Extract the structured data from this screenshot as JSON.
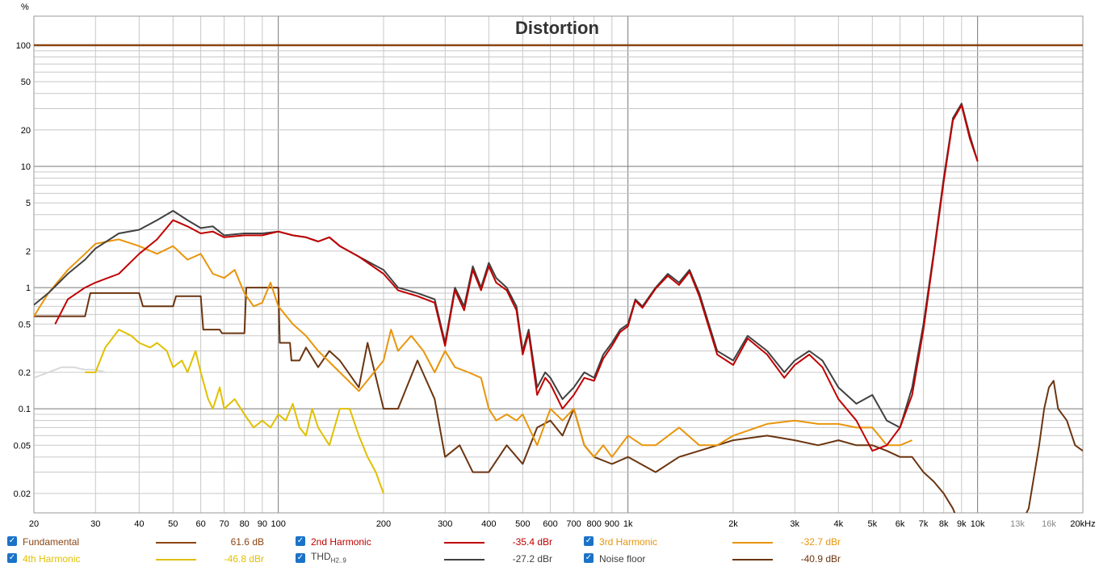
{
  "chart_data": {
    "type": "line",
    "title": "Distortion",
    "ylabel": "%",
    "x_scale": "log",
    "y_scale": "log",
    "xlim": [
      20,
      20000
    ],
    "ylim": [
      0.015,
      100
    ],
    "grid": true,
    "legend_position": "bottom",
    "x_tick_labels": [
      "20",
      "30",
      "40",
      "50",
      "60",
      "70",
      "80",
      "90",
      "100",
      "200",
      "300",
      "400",
      "500",
      "600",
      "700",
      "800",
      "900",
      "1k",
      "2k",
      "3k",
      "4k",
      "5k",
      "6k",
      "7k",
      "8k",
      "9k",
      "10k",
      "13k",
      "16k",
      "20kHz"
    ],
    "x_tick_values": [
      20,
      30,
      40,
      50,
      60,
      70,
      80,
      90,
      100,
      200,
      300,
      400,
      500,
      600,
      700,
      800,
      900,
      1000,
      2000,
      3000,
      4000,
      5000,
      6000,
      7000,
      8000,
      9000,
      10000,
      13000,
      16000,
      20000
    ],
    "y_tick_labels": [
      "100",
      "50",
      "20",
      "10",
      "5",
      "2",
      "1",
      "0.5",
      "0.2",
      "0.1",
      "0.05",
      "0.02"
    ],
    "y_tick_values": [
      100,
      50,
      20,
      10,
      5,
      2,
      1,
      0.5,
      0.2,
      0.1,
      0.05,
      0.02
    ],
    "series": [
      {
        "name": "Fundamental",
        "color": "#8b4513",
        "value": "61.6 dB",
        "x": [
          20,
          20000
        ],
        "y": [
          100,
          100
        ]
      },
      {
        "name": "THD",
        "sub": "H2..9",
        "color": "#404040",
        "value": "-27.2 dBr",
        "x": [
          20,
          22,
          25,
          28,
          30,
          35,
          40,
          45,
          50,
          55,
          60,
          65,
          70,
          80,
          90,
          100,
          110,
          120,
          130,
          140,
          150,
          170,
          200,
          220,
          250,
          280,
          300,
          320,
          340,
          360,
          380,
          400,
          420,
          450,
          480,
          500,
          520,
          550,
          580,
          600,
          650,
          700,
          750,
          800,
          850,
          900,
          950,
          1000,
          1050,
          1100,
          1200,
          1300,
          1400,
          1500,
          1600,
          1800,
          2000,
          2200,
          2500,
          2800,
          3000,
          3300,
          3600,
          4000,
          4500,
          5000,
          5500,
          6000,
          6500,
          7000,
          7500,
          8000,
          8500,
          9000,
          9500,
          10000
        ],
        "y": [
          0.72,
          0.9,
          1.3,
          1.7,
          2.1,
          2.8,
          3.0,
          3.6,
          4.3,
          3.6,
          3.1,
          3.2,
          2.7,
          2.8,
          2.8,
          2.9,
          2.7,
          2.6,
          2.4,
          2.6,
          2.2,
          1.8,
          1.4,
          1.0,
          0.9,
          0.8,
          0.35,
          1.0,
          0.7,
          1.5,
          1.0,
          1.6,
          1.2,
          1.0,
          0.7,
          0.3,
          0.45,
          0.15,
          0.2,
          0.18,
          0.12,
          0.15,
          0.2,
          0.18,
          0.28,
          0.35,
          0.45,
          0.5,
          0.8,
          0.7,
          1.0,
          1.3,
          1.1,
          1.4,
          0.9,
          0.3,
          0.25,
          0.4,
          0.3,
          0.2,
          0.25,
          0.3,
          0.25,
          0.15,
          0.11,
          0.13,
          0.08,
          0.07,
          0.15,
          0.5,
          2,
          8,
          25,
          33,
          18,
          11
        ]
      },
      {
        "name": "2nd Harmonic",
        "color": "#c00000",
        "value": "-35.4 dBr",
        "x": [
          23,
          25,
          28,
          30,
          35,
          40,
          45,
          50,
          55,
          60,
          65,
          70,
          80,
          90,
          100,
          110,
          120,
          130,
          140,
          150,
          170,
          200,
          220,
          250,
          280,
          300,
          320,
          340,
          360,
          380,
          400,
          420,
          450,
          480,
          500,
          520,
          550,
          580,
          600,
          650,
          700,
          750,
          800,
          850,
          900,
          950,
          1000,
          1050,
          1100,
          1200,
          1300,
          1400,
          1500,
          1600,
          1800,
          2000,
          2200,
          2500,
          2800,
          3000,
          3300,
          3600,
          4000,
          4500,
          5000,
          5500,
          6000,
          6500,
          7000,
          7500,
          8000,
          8500,
          9000,
          9500,
          10000
        ],
        "y": [
          0.5,
          0.8,
          1.0,
          1.1,
          1.3,
          1.9,
          2.5,
          3.6,
          3.2,
          2.8,
          2.9,
          2.6,
          2.7,
          2.7,
          2.9,
          2.7,
          2.6,
          2.4,
          2.6,
          2.2,
          1.8,
          1.3,
          0.95,
          0.85,
          0.75,
          0.33,
          0.95,
          0.65,
          1.4,
          0.95,
          1.5,
          1.1,
          0.95,
          0.65,
          0.28,
          0.42,
          0.13,
          0.18,
          0.16,
          0.1,
          0.13,
          0.18,
          0.17,
          0.26,
          0.33,
          0.43,
          0.48,
          0.78,
          0.68,
          0.98,
          1.25,
          1.05,
          1.35,
          0.85,
          0.28,
          0.23,
          0.38,
          0.28,
          0.18,
          0.23,
          0.28,
          0.22,
          0.12,
          0.08,
          0.045,
          0.05,
          0.07,
          0.13,
          0.45,
          1.9,
          7.5,
          24,
          32,
          17,
          11
        ]
      },
      {
        "name": "3rd Harmonic",
        "color": "#e8950c",
        "value": "-32.7 dBr",
        "x": [
          20,
          22,
          25,
          28,
          30,
          35,
          40,
          45,
          50,
          55,
          60,
          65,
          70,
          75,
          80,
          85,
          90,
          95,
          100,
          110,
          120,
          130,
          150,
          170,
          200,
          210,
          220,
          240,
          260,
          280,
          300,
          320,
          350,
          380,
          400,
          420,
          450,
          480,
          500,
          550,
          600,
          650,
          700,
          750,
          800,
          850,
          900,
          1000,
          1100,
          1200,
          1400,
          1600,
          1800,
          2000,
          2500,
          3000,
          3500,
          4000,
          4500,
          5000,
          5500,
          6000,
          6500
        ],
        "y": [
          0.58,
          0.9,
          1.4,
          1.9,
          2.3,
          2.5,
          2.2,
          1.9,
          2.2,
          1.7,
          1.9,
          1.3,
          1.2,
          1.4,
          0.9,
          0.7,
          0.75,
          1.1,
          0.7,
          0.5,
          0.4,
          0.3,
          0.2,
          0.14,
          0.25,
          0.45,
          0.3,
          0.4,
          0.3,
          0.2,
          0.3,
          0.22,
          0.2,
          0.18,
          0.1,
          0.08,
          0.09,
          0.08,
          0.09,
          0.05,
          0.1,
          0.08,
          0.1,
          0.05,
          0.04,
          0.05,
          0.04,
          0.06,
          0.05,
          0.05,
          0.07,
          0.05,
          0.05,
          0.06,
          0.075,
          0.08,
          0.075,
          0.075,
          0.07,
          0.07,
          0.05,
          0.05,
          0.055
        ]
      },
      {
        "name": "4th Harmonic",
        "color": "#e0c000",
        "value": "-46.8 dBr",
        "x": [
          28,
          30,
          32,
          35,
          38,
          40,
          43,
          45,
          48,
          50,
          53,
          55,
          58,
          60,
          63,
          65,
          68,
          70,
          75,
          80,
          85,
          90,
          95,
          100,
          105,
          110,
          115,
          120,
          125,
          130,
          140,
          150,
          160,
          170,
          180,
          190,
          200
        ],
        "y": [
          0.2,
          0.2,
          0.32,
          0.45,
          0.4,
          0.35,
          0.32,
          0.35,
          0.3,
          0.22,
          0.25,
          0.2,
          0.3,
          0.2,
          0.12,
          0.1,
          0.15,
          0.1,
          0.12,
          0.09,
          0.07,
          0.08,
          0.07,
          0.09,
          0.08,
          0.11,
          0.07,
          0.06,
          0.1,
          0.07,
          0.05,
          0.1,
          0.1,
          0.06,
          0.04,
          0.03,
          0.02
        ]
      },
      {
        "name": "Noise floor",
        "color": "#6b3510",
        "value": "-40.9 dBr",
        "x": [
          20,
          28,
          29,
          40,
          41,
          50,
          51,
          60,
          61,
          68,
          69,
          80,
          81,
          88,
          89,
          100,
          101,
          108,
          109,
          115,
          120,
          130,
          140,
          150,
          170,
          180,
          200,
          220,
          250,
          280,
          300,
          330,
          360,
          400,
          450,
          500,
          550,
          600,
          650,
          700,
          750,
          800,
          900,
          1000,
          1200,
          1400,
          1600,
          1800,
          2000,
          2500,
          3000,
          3500,
          4000,
          4500,
          5000,
          5500,
          6000,
          6500,
          7000,
          7500,
          8000,
          8500,
          9000,
          9500,
          10000,
          12000,
          13000,
          14000,
          15000,
          15500,
          16000,
          16500,
          17000,
          18000,
          19000,
          20000
        ],
        "y": [
          0.58,
          0.58,
          0.9,
          0.9,
          0.7,
          0.7,
          0.85,
          0.85,
          0.45,
          0.45,
          0.42,
          0.42,
          1.0,
          1.0,
          1.0,
          1.0,
          0.35,
          0.35,
          0.25,
          0.25,
          0.32,
          0.22,
          0.3,
          0.25,
          0.15,
          0.35,
          0.1,
          0.1,
          0.25,
          0.12,
          0.04,
          0.05,
          0.03,
          0.03,
          0.05,
          0.035,
          0.07,
          0.08,
          0.06,
          0.1,
          0.05,
          0.04,
          0.035,
          0.04,
          0.03,
          0.04,
          0.045,
          0.05,
          0.055,
          0.06,
          0.055,
          0.05,
          0.055,
          0.05,
          0.05,
          0.045,
          0.04,
          0.04,
          0.03,
          0.025,
          0.02,
          0.015,
          0.01,
          0.01,
          0.01,
          0.01,
          0.01,
          0.015,
          0.05,
          0.1,
          0.15,
          0.17,
          0.1,
          0.08,
          0.05,
          0.045
        ]
      },
      {
        "name": "background-trace",
        "color": "#d8d8d8",
        "value": "",
        "x": [
          20,
          22,
          24,
          26,
          28,
          30,
          32
        ],
        "y": [
          0.18,
          0.2,
          0.22,
          0.22,
          0.21,
          0.21,
          0.2
        ]
      }
    ]
  },
  "legend": {
    "items": [
      {
        "label": "Fundamental",
        "value": "61.6 dB",
        "color": "#8b4513",
        "checked": true
      },
      {
        "label": "2nd Harmonic",
        "value": "-35.4 dBr",
        "color": "#c00000",
        "checked": true
      },
      {
        "label": "3rd Harmonic",
        "value": "-32.7 dBr",
        "color": "#e8950c",
        "checked": true
      },
      {
        "label": "4th Harmonic",
        "value": "-46.8 dBr",
        "color": "#e0c000",
        "checked": true
      },
      {
        "label": "THD",
        "sub": "H2..9",
        "value": "-27.2 dBr",
        "color": "#404040",
        "checked": true
      },
      {
        "label": "Noise floor",
        "value": "-40.9 dBr",
        "color": "#6b3510",
        "checked": true
      }
    ]
  }
}
